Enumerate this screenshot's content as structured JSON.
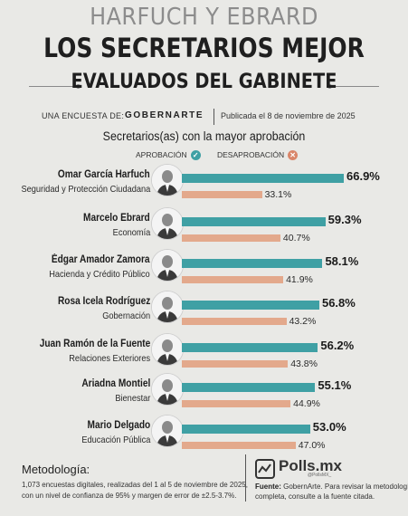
{
  "header": {
    "title_line1": "HARFUCH Y EBRARD",
    "title_line2": "LOS SECRETARIOS MEJOR",
    "title_line3": "EVALUADOS DEL GABINETE"
  },
  "survey": {
    "label": "UNA ENCUESTA DE:",
    "brand": "GOBERNARTE",
    "published": "Publicada el 8 de noviembre de 2025"
  },
  "colors": {
    "approval": "#3fa0a4",
    "disapproval": "#e3a98c",
    "background": "#e9e9e6"
  },
  "chart_data": {
    "type": "bar",
    "title": "Secretarios(as) con la mayor aprobación",
    "legend": {
      "approval_label": "APROBACIÓN",
      "approval_icon": "check-icon",
      "disapproval_label": "DESAPROBACIÓN",
      "disapproval_icon": "x-icon",
      "placement": "top"
    },
    "categories": [
      "Omar García Harfuch",
      "Marcelo Ebrard",
      "Édgar Amador Zamora",
      "Rosa Icela Rodríguez",
      "Juan Ramón de la Fuente",
      "Ariadna Montiel",
      "Mario Delgado"
    ],
    "roles": [
      "Seguridad y Protección Ciudadana",
      "Economía",
      "Hacienda y Crédito Público",
      "Gobernación",
      "Relaciones Exteriores",
      "Bienestar",
      "Educación Pública"
    ],
    "series": [
      {
        "name": "APROBACIÓN",
        "values": [
          66.9,
          59.3,
          58.1,
          56.8,
          56.2,
          55.1,
          53.0
        ],
        "labels": [
          "66.9%",
          "59.3%",
          "58.1%",
          "56.8%",
          "56.2%",
          "55.1%",
          "53.0%"
        ]
      },
      {
        "name": "DESAPROBACIÓN",
        "values": [
          33.1,
          40.7,
          41.9,
          43.2,
          43.8,
          44.9,
          47.0
        ],
        "labels": [
          "33.1%",
          "40.7%",
          "41.9%",
          "43.2%",
          "43.8%",
          "44.9%",
          "47.0%"
        ]
      }
    ],
    "ylim": [
      0,
      100
    ],
    "grid": false
  },
  "footer": {
    "methodology_heading": "Metodología:",
    "methodology_line1": "1,073 encuestas digitales, realizadas del 1 al 5 de noviembre de 2025,",
    "methodology_line2": "con un nivel de confianza de 95% y margen de error de ±2.5-3.7%.",
    "logo_name": "Polls.mx",
    "logo_tagline": "@PollsMX_",
    "logo_icon": "polls-logo-icon",
    "source_label": "Fuente:",
    "source_line1_rest": " GobernArte. Para revisar la metodología",
    "source_line2": "completa, consulte a la fuente citada."
  }
}
